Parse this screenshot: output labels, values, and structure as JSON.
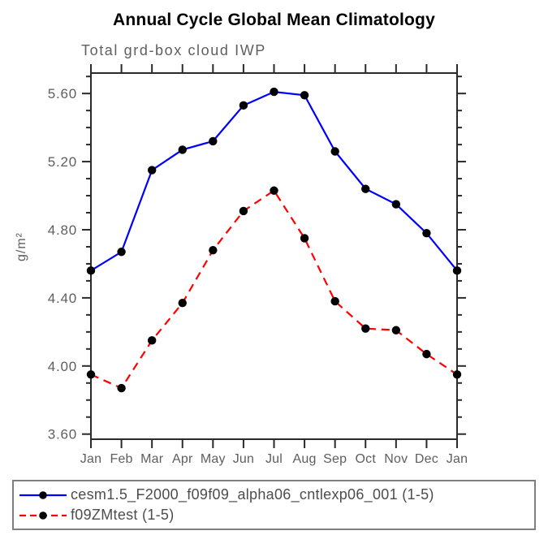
{
  "chart_data": {
    "type": "line",
    "title": "Annual Cycle Global Mean Climatology",
    "subtitle": "Total grd-box cloud IWP",
    "xlabel": "",
    "ylabel": "g/m²",
    "categories": [
      "Jan",
      "Feb",
      "Mar",
      "Apr",
      "May",
      "Jun",
      "Jul",
      "Aug",
      "Sep",
      "Oct",
      "Nov",
      "Dec",
      "Jan"
    ],
    "series": [
      {
        "name": "cesm1.5_F2000_f09f09_alpha06_cntlexp06_001 (1-5)",
        "color": "#0000ff",
        "style": "solid",
        "marker": "filled-circle",
        "marker_color": "#000000",
        "values": [
          4.56,
          4.67,
          5.15,
          5.27,
          5.32,
          5.53,
          5.61,
          5.59,
          5.26,
          5.04,
          4.95,
          4.78,
          4.56
        ]
      },
      {
        "name": "f09ZMtest (1-5)",
        "color": "#ff0000",
        "style": "dashed",
        "marker": "filled-circle",
        "marker_color": "#000000",
        "values": [
          3.95,
          3.87,
          4.15,
          4.37,
          4.68,
          4.91,
          5.03,
          4.75,
          4.38,
          4.22,
          4.21,
          4.07,
          3.95
        ]
      }
    ],
    "ylim": [
      3.57,
      5.72
    ],
    "yticks_major": [
      3.6,
      4.0,
      4.4,
      4.8,
      5.2,
      5.6
    ],
    "ytick_labels": [
      "3.60",
      "4.00",
      "4.40",
      "4.80",
      "5.20",
      "5.60"
    ],
    "minor_tick_interval": 0.1,
    "grid": false,
    "tick_direction": "out",
    "legend_position": "bottom-left"
  }
}
